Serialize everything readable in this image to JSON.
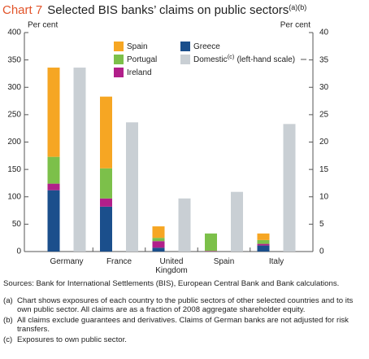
{
  "chart_data": {
    "type": "bar",
    "stacked": true,
    "title_prefix": "Chart 7",
    "title": "Selected BIS banks’ claims on public sectors",
    "title_refs": "(a)(b)",
    "ylabel": "Per cent",
    "y2label": "Per cent",
    "categories": [
      "Germany",
      "France",
      "United Kingdom",
      "Spain",
      "Italy"
    ],
    "ylim": [
      0,
      400
    ],
    "yticks": [
      0,
      50,
      100,
      150,
      200,
      250,
      300,
      350,
      400
    ],
    "y2lim": [
      0,
      40
    ],
    "y2ticks": [
      0,
      5,
      10,
      15,
      20,
      25,
      30,
      35,
      40
    ],
    "series": [
      {
        "name": "Greece",
        "color": "#1b4f8c",
        "axis": "y2",
        "values": [
          11.2,
          8.2,
          0.7,
          0,
          1.1
        ]
      },
      {
        "name": "Ireland",
        "color": "#b11f8a",
        "axis": "y2",
        "values": [
          1.2,
          1.5,
          1.2,
          0.1,
          0.3
        ]
      },
      {
        "name": "Portugal",
        "color": "#7cc04a",
        "axis": "y2",
        "values": [
          4.9,
          5.5,
          0.6,
          3.2,
          0.7
        ]
      },
      {
        "name": "Spain",
        "color": "#f6a623",
        "axis": "y2",
        "values": [
          16.3,
          13.1,
          2.1,
          0,
          1.2
        ]
      },
      {
        "name": "Domestic",
        "name_ref": "(c)",
        "name_suffix": "(left-hand scale)",
        "color": "#c9cfd4",
        "axis": "y",
        "stacked": false,
        "values": [
          336,
          236,
          97,
          109,
          233
        ]
      }
    ],
    "sources": "Sources: Bank for International Settlements (BIS), European Central Bank and Bank calculations.",
    "notes": [
      {
        "marker": "(a)",
        "text": "Chart shows exposures of each country to the public sectors of other selected countries and to its own public sector. All claims are as a fraction of 2008 aggregate shareholder equity."
      },
      {
        "marker": "(b)",
        "text": "All claims exclude guarantees and derivatives. Claims of German banks are not adjusted for risk transfers."
      },
      {
        "marker": "(c)",
        "text": "Exposures to own public sector."
      }
    ]
  }
}
